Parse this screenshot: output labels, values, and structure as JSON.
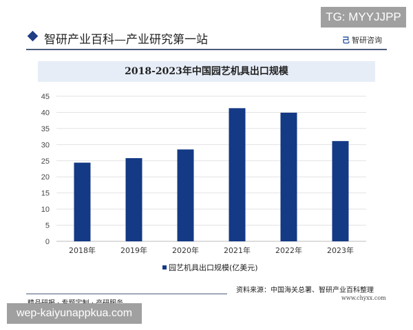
{
  "watermark_top": "TG: MYYJJPP",
  "header": {
    "title": "智研产业百科—产业研究第一站",
    "logo_text": "智研咨询"
  },
  "chart_data": {
    "type": "bar",
    "title": "2018-2023年中国园艺机具出口规模",
    "categories": [
      "2018年",
      "2019年",
      "2020年",
      "2021年",
      "2022年",
      "2023年"
    ],
    "series": [
      {
        "name": "园艺机具出口规模(亿美元)",
        "values": [
          24.4,
          25.8,
          28.5,
          41.3,
          39.9,
          31.1
        ],
        "color": "#143985"
      }
    ],
    "yticks": [
      0,
      5,
      10,
      15,
      20,
      25,
      30,
      35,
      40,
      45
    ],
    "ylim": [
      0,
      45
    ],
    "grid": true,
    "legend": "bottom"
  },
  "footer": {
    "left": "精品研报 · 专题定制 · 产研服务",
    "source": "资料来源：中国海关总署、智研产业百科整理",
    "url": "www.chyxx.com"
  },
  "watermark_bottom": "wep-kaiyunappkua.com"
}
